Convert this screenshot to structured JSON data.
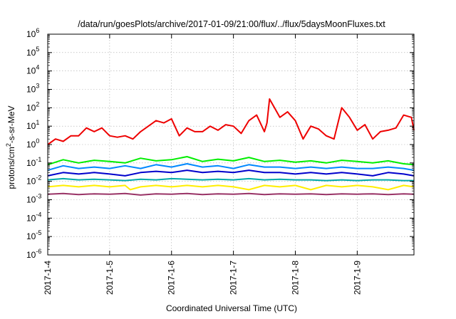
{
  "chart_data": {
    "type": "line",
    "title": "/data/run/goesPlots/archive/2017-01-09/21:00/flux/../flux/5daysMoonFluxes.txt",
    "xlabel": "Coordinated Universal Time (UTC)",
    "ylabel_parts": [
      "protons/cm",
      "2",
      "-s-sr-MeV"
    ],
    "yscale": "log",
    "ylim": [
      1e-06,
      1000000.0
    ],
    "ytick_exponents": [
      -6,
      -5,
      -4,
      -3,
      -2,
      -1,
      0,
      1,
      2,
      3,
      4,
      5,
      6
    ],
    "xlim": [
      "2017-01-04T00:00",
      "2017-01-09T22:00"
    ],
    "xticks": [
      "2017-1-4",
      "2017-1-5",
      "2017-1-6",
      "2017-1-7",
      "2017-1-8",
      "2017-1-9"
    ],
    "grid": true,
    "series": [
      {
        "color": "#ee0000",
        "x": [
          "2017-01-04T00:00",
          "2017-01-04T03:00",
          "2017-01-04T06:00",
          "2017-01-04T09:00",
          "2017-01-04T12:00",
          "2017-01-04T15:00",
          "2017-01-04T18:00",
          "2017-01-04T21:00",
          "2017-01-05T00:00",
          "2017-01-05T03:00",
          "2017-01-05T06:00",
          "2017-01-05T09:00",
          "2017-01-05T12:00",
          "2017-01-05T15:00",
          "2017-01-05T18:00",
          "2017-01-05T21:00",
          "2017-01-06T00:00",
          "2017-01-06T03:00",
          "2017-01-06T06:00",
          "2017-01-06T09:00",
          "2017-01-06T12:00",
          "2017-01-06T15:00",
          "2017-01-06T18:00",
          "2017-01-06T21:00",
          "2017-01-07T00:00",
          "2017-01-07T03:00",
          "2017-01-07T06:00",
          "2017-01-07T09:00",
          "2017-01-07T12:00",
          "2017-01-07T13:00",
          "2017-01-07T14:00",
          "2017-01-07T18:00",
          "2017-01-07T21:00",
          "2017-01-08T00:00",
          "2017-01-08T03:00",
          "2017-01-08T06:00",
          "2017-01-08T09:00",
          "2017-01-08T12:00",
          "2017-01-08T15:00",
          "2017-01-08T18:00",
          "2017-01-08T21:00",
          "2017-01-09T00:00",
          "2017-01-09T03:00",
          "2017-01-09T06:00",
          "2017-01-09T09:00",
          "2017-01-09T12:00",
          "2017-01-09T15:00",
          "2017-01-09T18:00",
          "2017-01-09T21:00",
          "2017-01-09T22:00"
        ],
        "values": [
          1,
          2,
          1.5,
          3,
          3,
          8,
          5,
          8,
          3,
          2.5,
          3,
          2,
          5,
          10,
          20,
          15,
          25,
          3,
          8,
          5,
          5,
          10,
          6,
          12,
          10,
          4,
          20,
          40,
          5,
          15,
          300,
          30,
          60,
          20,
          2,
          10,
          7,
          3,
          2,
          100,
          30,
          6,
          12,
          2,
          5,
          6,
          8,
          40,
          30,
          6
        ]
      },
      {
        "color": "#00ee00",
        "x": [
          "2017-01-04T00:00",
          "2017-01-04T06:00",
          "2017-01-04T12:00",
          "2017-01-04T18:00",
          "2017-01-05T00:00",
          "2017-01-05T06:00",
          "2017-01-05T12:00",
          "2017-01-05T18:00",
          "2017-01-06T00:00",
          "2017-01-06T06:00",
          "2017-01-06T12:00",
          "2017-01-06T18:00",
          "2017-01-07T00:00",
          "2017-01-07T06:00",
          "2017-01-07T12:00",
          "2017-01-07T18:00",
          "2017-01-08T00:00",
          "2017-01-08T06:00",
          "2017-01-08T12:00",
          "2017-01-08T18:00",
          "2017-01-09T00:00",
          "2017-01-09T06:00",
          "2017-01-09T12:00",
          "2017-01-09T18:00",
          "2017-01-09T22:00"
        ],
        "values": [
          0.08,
          0.15,
          0.1,
          0.14,
          0.12,
          0.1,
          0.18,
          0.13,
          0.15,
          0.22,
          0.12,
          0.16,
          0.13,
          0.2,
          0.12,
          0.14,
          0.11,
          0.13,
          0.1,
          0.14,
          0.12,
          0.1,
          0.13,
          0.09,
          0.08
        ]
      },
      {
        "color": "#0088ff",
        "x": [
          "2017-01-04T00:00",
          "2017-01-04T06:00",
          "2017-01-04T12:00",
          "2017-01-04T18:00",
          "2017-01-05T00:00",
          "2017-01-05T06:00",
          "2017-01-05T12:00",
          "2017-01-05T18:00",
          "2017-01-06T00:00",
          "2017-01-06T06:00",
          "2017-01-06T12:00",
          "2017-01-06T18:00",
          "2017-01-07T00:00",
          "2017-01-07T06:00",
          "2017-01-07T12:00",
          "2017-01-07T18:00",
          "2017-01-08T00:00",
          "2017-01-08T06:00",
          "2017-01-08T12:00",
          "2017-01-08T18:00",
          "2017-01-09T00:00",
          "2017-01-09T06:00",
          "2017-01-09T12:00",
          "2017-01-09T18:00",
          "2017-01-09T22:00"
        ],
        "values": [
          0.04,
          0.07,
          0.05,
          0.06,
          0.05,
          0.07,
          0.05,
          0.08,
          0.06,
          0.09,
          0.06,
          0.07,
          0.05,
          0.08,
          0.06,
          0.06,
          0.05,
          0.06,
          0.05,
          0.06,
          0.05,
          0.05,
          0.06,
          0.05,
          0.04
        ]
      },
      {
        "color": "#0000cc",
        "x": [
          "2017-01-04T00:00",
          "2017-01-04T06:00",
          "2017-01-04T12:00",
          "2017-01-04T18:00",
          "2017-01-05T00:00",
          "2017-01-05T06:00",
          "2017-01-05T12:00",
          "2017-01-05T18:00",
          "2017-01-06T00:00",
          "2017-01-06T06:00",
          "2017-01-06T12:00",
          "2017-01-06T18:00",
          "2017-01-07T00:00",
          "2017-01-07T06:00",
          "2017-01-07T12:00",
          "2017-01-07T18:00",
          "2017-01-08T00:00",
          "2017-01-08T06:00",
          "2017-01-08T12:00",
          "2017-01-08T18:00",
          "2017-01-09T00:00",
          "2017-01-09T06:00",
          "2017-01-09T12:00",
          "2017-01-09T18:00",
          "2017-01-09T22:00"
        ],
        "values": [
          0.02,
          0.03,
          0.025,
          0.03,
          0.025,
          0.02,
          0.03,
          0.035,
          0.03,
          0.04,
          0.03,
          0.035,
          0.03,
          0.04,
          0.03,
          0.03,
          0.025,
          0.03,
          0.025,
          0.03,
          0.025,
          0.02,
          0.03,
          0.025,
          0.02
        ]
      },
      {
        "color": "#00aaaa",
        "x": [
          "2017-01-04T00:00",
          "2017-01-04T06:00",
          "2017-01-04T12:00",
          "2017-01-04T18:00",
          "2017-01-05T00:00",
          "2017-01-05T06:00",
          "2017-01-05T12:00",
          "2017-01-05T18:00",
          "2017-01-06T00:00",
          "2017-01-06T06:00",
          "2017-01-06T12:00",
          "2017-01-06T18:00",
          "2017-01-07T00:00",
          "2017-01-07T06:00",
          "2017-01-07T12:00",
          "2017-01-07T18:00",
          "2017-01-08T00:00",
          "2017-01-08T06:00",
          "2017-01-08T12:00",
          "2017-01-08T18:00",
          "2017-01-09T00:00",
          "2017-01-09T06:00",
          "2017-01-09T12:00",
          "2017-01-09T18:00",
          "2017-01-09T22:00"
        ],
        "values": [
          0.012,
          0.014,
          0.012,
          0.013,
          0.012,
          0.011,
          0.013,
          0.012,
          0.014,
          0.013,
          0.012,
          0.013,
          0.012,
          0.014,
          0.012,
          0.013,
          0.012,
          0.012,
          0.011,
          0.012,
          0.011,
          0.012,
          0.012,
          0.011,
          0.011
        ]
      },
      {
        "color": "#ffee00",
        "x": [
          "2017-01-04T00:00",
          "2017-01-04T06:00",
          "2017-01-04T12:00",
          "2017-01-04T18:00",
          "2017-01-05T00:00",
          "2017-01-05T06:00",
          "2017-01-05T08:00",
          "2017-01-05T12:00",
          "2017-01-05T18:00",
          "2017-01-06T00:00",
          "2017-01-06T06:00",
          "2017-01-06T12:00",
          "2017-01-06T18:00",
          "2017-01-07T00:00",
          "2017-01-07T06:00",
          "2017-01-07T12:00",
          "2017-01-07T18:00",
          "2017-01-08T00:00",
          "2017-01-08T06:00",
          "2017-01-08T12:00",
          "2017-01-08T18:00",
          "2017-01-09T00:00",
          "2017-01-09T06:00",
          "2017-01-09T12:00",
          "2017-01-09T18:00",
          "2017-01-09T22:00"
        ],
        "values": [
          0.005,
          0.006,
          0.005,
          0.006,
          0.005,
          0.006,
          0.0035,
          0.005,
          0.006,
          0.005,
          0.006,
          0.005,
          0.006,
          0.005,
          0.0035,
          0.006,
          0.005,
          0.006,
          0.0035,
          0.006,
          0.005,
          0.006,
          0.005,
          0.0035,
          0.006,
          0.005
        ]
      },
      {
        "color": "#993366",
        "x": [
          "2017-01-04T00:00",
          "2017-01-04T06:00",
          "2017-01-04T12:00",
          "2017-01-04T18:00",
          "2017-01-05T00:00",
          "2017-01-05T06:00",
          "2017-01-05T12:00",
          "2017-01-05T18:00",
          "2017-01-06T00:00",
          "2017-01-06T06:00",
          "2017-01-06T12:00",
          "2017-01-06T18:00",
          "2017-01-07T00:00",
          "2017-01-07T06:00",
          "2017-01-07T12:00",
          "2017-01-07T18:00",
          "2017-01-08T00:00",
          "2017-01-08T06:00",
          "2017-01-08T12:00",
          "2017-01-08T18:00",
          "2017-01-09T00:00",
          "2017-01-09T06:00",
          "2017-01-09T12:00",
          "2017-01-09T18:00",
          "2017-01-09T22:00"
        ],
        "values": [
          0.002,
          0.0022,
          0.0019,
          0.0021,
          0.002,
          0.0022,
          0.0018,
          0.0021,
          0.002,
          0.0022,
          0.0019,
          0.0021,
          0.002,
          0.0022,
          0.0019,
          0.0021,
          0.002,
          0.0021,
          0.0019,
          0.0021,
          0.002,
          0.0021,
          0.0019,
          0.0021,
          0.002
        ]
      }
    ]
  }
}
